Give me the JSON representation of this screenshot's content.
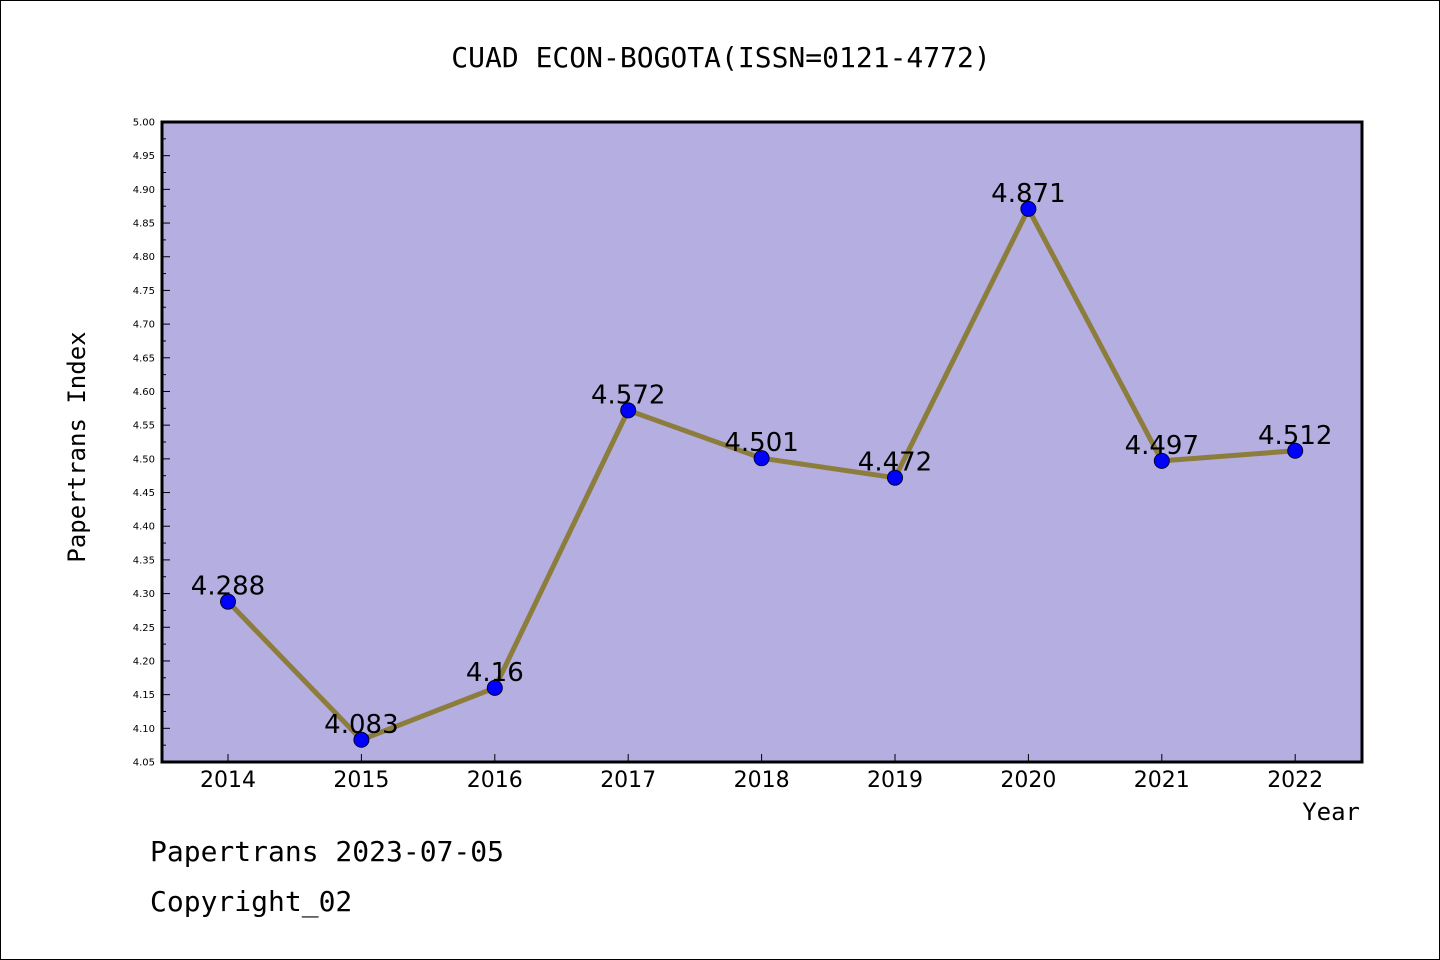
{
  "chart_data": {
    "type": "line",
    "title": "CUAD ECON-BOGOTA(ISSN=0121-4772)",
    "xlabel": "Year",
    "ylabel": "Papertrans Index",
    "categories": [
      "2014",
      "2015",
      "2016",
      "2017",
      "2018",
      "2019",
      "2020",
      "2021",
      "2022"
    ],
    "series": [
      {
        "values": [
          4.288,
          4.083,
          4.16,
          4.572,
          4.501,
          4.472,
          4.871,
          4.497,
          4.512
        ],
        "labels": [
          "4.288",
          "4.083",
          "4.16",
          "4.572",
          "4.501",
          "4.472",
          "4.871",
          "4.497",
          "4.512"
        ]
      }
    ],
    "ylim": [
      4.05,
      5.0
    ],
    "yticks": [
      "4.05",
      "4.10",
      "4.15",
      "4.20",
      "4.25",
      "4.30",
      "4.35",
      "4.40",
      "4.45",
      "4.50",
      "4.55",
      "4.60",
      "4.65",
      "4.70",
      "4.75",
      "4.80",
      "4.85",
      "4.90",
      "4.95",
      "5.00"
    ],
    "grid": false,
    "colors": {
      "plot_background": "#b4aee1",
      "line": "#8c7d3c",
      "marker": "#0000ff"
    }
  },
  "footer": {
    "line1": "Papertrans 2023-07-05",
    "line2": "Copyright_02"
  }
}
